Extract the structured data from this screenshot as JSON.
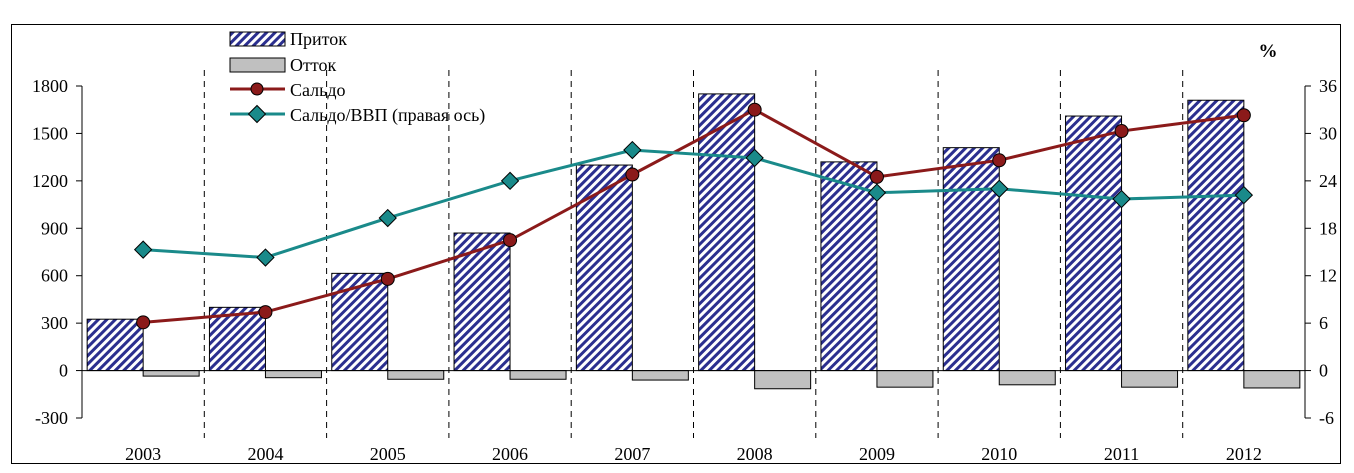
{
  "chart_data": {
    "type": "bar",
    "categories": [
      "2003",
      "2004",
      "2005",
      "2006",
      "2007",
      "2008",
      "2009",
      "2010",
      "2011",
      "2012"
    ],
    "ylim": [
      -300,
      1800
    ],
    "y_ticks": [
      -300,
      0,
      300,
      600,
      900,
      1200,
      1500,
      1800
    ],
    "y2lim": [
      -6,
      36
    ],
    "y2_ticks": [
      -6,
      0,
      6,
      12,
      18,
      24,
      30,
      36
    ],
    "y2_unit": "%",
    "grid": "vertical dashed separators between years",
    "legend_position": "top-left",
    "series": [
      {
        "name": "Приток",
        "kind": "bar",
        "axis": "left",
        "color": "#2b2f8f",
        "values": [
          325,
          400,
          615,
          870,
          1300,
          1750,
          1320,
          1410,
          1610,
          1710
        ]
      },
      {
        "name": "Отток",
        "kind": "bar",
        "axis": "left",
        "color": "#c0c0c0",
        "values": [
          -35,
          -45,
          -55,
          -55,
          -60,
          -115,
          -105,
          -90,
          -105,
          -110
        ]
      },
      {
        "name": "Сальдо",
        "kind": "line",
        "axis": "left",
        "color": "#8b1a1a",
        "values": [
          305,
          370,
          580,
          825,
          1240,
          1650,
          1225,
          1330,
          1515,
          1615
        ]
      },
      {
        "name": "Сальдо/ВВП (правая ось)",
        "kind": "line",
        "axis": "right",
        "color": "#1a8a8a",
        "values": [
          15.3,
          14.3,
          19.3,
          24.0,
          27.9,
          26.9,
          22.5,
          23.0,
          21.7,
          22.2
        ]
      }
    ]
  }
}
